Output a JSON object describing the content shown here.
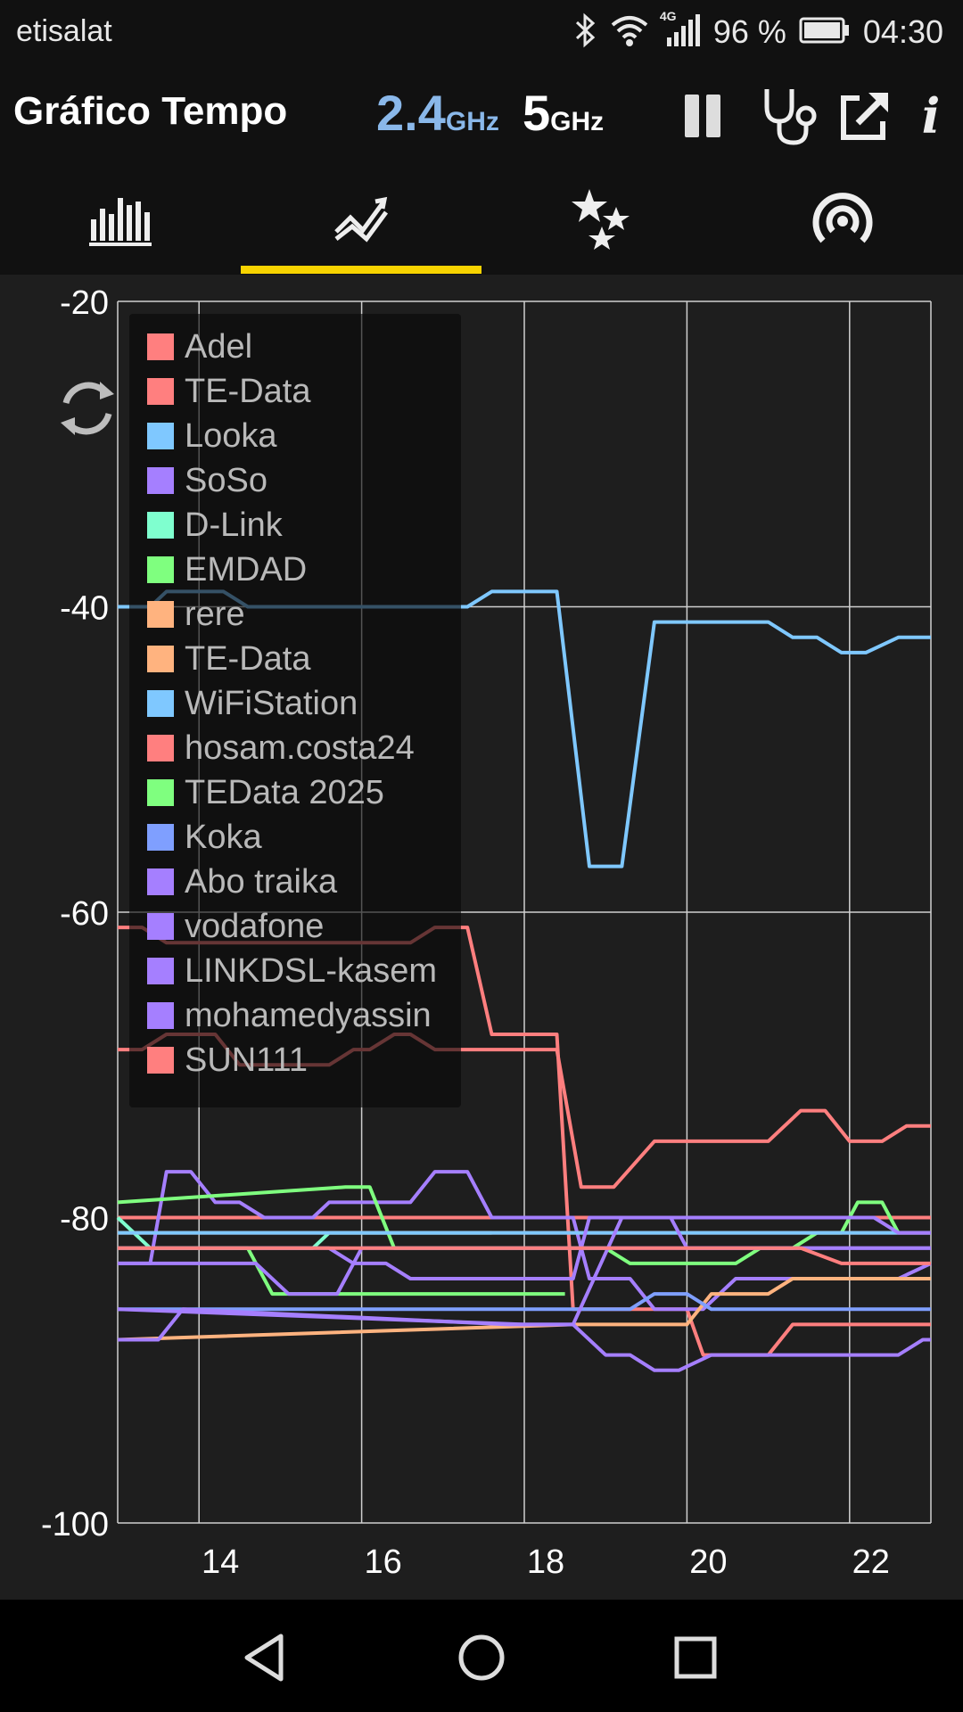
{
  "status_bar": {
    "carrier": "etisalat",
    "network": "4G",
    "battery": "96 %",
    "time": "04:30",
    "icons": [
      "bluetooth-icon",
      "wifi-icon",
      "signal-icon",
      "battery-icon"
    ]
  },
  "app_bar": {
    "title": "Gráfico Tempo",
    "band_24_value": "2.4",
    "band_24_unit": "GHz",
    "band_5_value": "5",
    "band_5_unit": "GHz",
    "band_24_color": "#8ab8ea",
    "band_5_color": "#ffffff",
    "actions": [
      "pause-icon",
      "stethoscope-icon",
      "share-icon",
      "info-icon"
    ],
    "info_label": "i"
  },
  "tabs": {
    "items": [
      "bar-chart-icon",
      "time-graph-icon",
      "stars-icon",
      "signal-strength-icon"
    ],
    "active_index": 1,
    "indicator_color": "#f7d300"
  },
  "chart_data": {
    "type": "line",
    "ylim": [
      -100,
      -20
    ],
    "xlim": [
      13,
      23
    ],
    "y_ticks": [
      "-20",
      "-40",
      "-60",
      "-80",
      "-100"
    ],
    "x_ticks": [
      "14",
      "16",
      "18",
      "20",
      "22"
    ],
    "grid": true,
    "legend_position": "top-left",
    "series": [
      {
        "name": "Adel",
        "color": "#ff7f7f",
        "points": [
          [
            13,
            -80
          ],
          [
            23,
            -80
          ]
        ]
      },
      {
        "name": "TE-Data",
        "color": "#ff7f7f",
        "points": [
          [
            13,
            -61
          ],
          [
            13.3,
            -61
          ],
          [
            13.6,
            -62
          ],
          [
            16.6,
            -62
          ],
          [
            16.9,
            -61
          ],
          [
            17.3,
            -61
          ],
          [
            17.6,
            -68
          ],
          [
            18.2,
            -68
          ],
          [
            18.4,
            -68
          ],
          [
            18.6,
            -86
          ],
          [
            19,
            -86
          ],
          [
            19.2,
            -86
          ],
          [
            20,
            -86
          ],
          [
            20.2,
            -89
          ],
          [
            21,
            -89
          ],
          [
            21.3,
            -87
          ],
          [
            23,
            -87
          ]
        ]
      },
      {
        "name": "Looka",
        "color": "#7fc8ff",
        "points": [
          [
            13,
            -40
          ],
          [
            13.4,
            -40
          ],
          [
            13.6,
            -39
          ],
          [
            14.3,
            -39
          ],
          [
            14.6,
            -40
          ],
          [
            17.3,
            -40
          ],
          [
            17.6,
            -39
          ],
          [
            18.4,
            -39
          ],
          [
            18.8,
            -57
          ],
          [
            19.2,
            -57
          ],
          [
            19.6,
            -41
          ],
          [
            21,
            -41
          ],
          [
            21.3,
            -42
          ],
          [
            21.6,
            -42
          ],
          [
            21.9,
            -43
          ],
          [
            22.2,
            -43
          ],
          [
            22.6,
            -42
          ],
          [
            23,
            -42
          ]
        ]
      },
      {
        "name": "SoSo",
        "color": "#a57fff",
        "points": [
          [
            13,
            -83
          ],
          [
            13.4,
            -83
          ],
          [
            13.6,
            -77
          ],
          [
            13.9,
            -77
          ],
          [
            14.2,
            -79
          ],
          [
            14.5,
            -79
          ],
          [
            14.8,
            -80
          ],
          [
            15.4,
            -80
          ],
          [
            15.6,
            -79
          ],
          [
            16.6,
            -79
          ],
          [
            16.9,
            -77
          ],
          [
            17.3,
            -77
          ],
          [
            17.6,
            -80
          ],
          [
            18.6,
            -80
          ],
          [
            18.8,
            -84
          ],
          [
            19.3,
            -84
          ],
          [
            19.6,
            -86
          ],
          [
            20.2,
            -86
          ],
          [
            20.6,
            -84
          ],
          [
            22.6,
            -84
          ],
          [
            23,
            -83
          ]
        ]
      },
      {
        "name": "D-Link",
        "color": "#7fffcf",
        "points": [
          [
            13,
            -80
          ],
          [
            13.4,
            -82
          ],
          [
            15.4,
            -82
          ],
          [
            15.6,
            -81
          ],
          [
            17.6,
            -81
          ]
        ]
      },
      {
        "name": "EMDAD",
        "color": "#7fff7f",
        "points": [
          [
            13,
            -79
          ],
          [
            15.8,
            -78
          ],
          [
            16.1,
            -78
          ],
          [
            16.4,
            -82
          ],
          [
            18.6,
            -82
          ],
          [
            19,
            -82
          ],
          [
            19.3,
            -83
          ],
          [
            20.6,
            -83
          ],
          [
            20.9,
            -82
          ],
          [
            21.3,
            -82
          ],
          [
            21.6,
            -81
          ],
          [
            21.9,
            -81
          ],
          [
            22.1,
            -79
          ],
          [
            22.4,
            -79
          ],
          [
            22.6,
            -81
          ]
        ]
      },
      {
        "name": "rere",
        "color": "#ffb37f",
        "points": [
          [
            13,
            -81
          ],
          [
            18.6,
            -81
          ],
          [
            20.2,
            -81
          ],
          [
            23,
            -81
          ]
        ]
      },
      {
        "name": "TE-Data",
        "color": "#ffb37f",
        "points": [
          [
            13,
            -88
          ],
          [
            18.6,
            -87
          ],
          [
            20,
            -87
          ],
          [
            20.3,
            -85
          ],
          [
            21,
            -85
          ],
          [
            21.3,
            -84
          ],
          [
            23,
            -84
          ]
        ]
      },
      {
        "name": "WiFiStation",
        "color": "#7fc8ff",
        "points": [
          [
            13,
            -81
          ],
          [
            18.6,
            -81
          ],
          [
            19.6,
            -81
          ],
          [
            20,
            -81
          ],
          [
            23,
            -81
          ]
        ]
      },
      {
        "name": "hosam.costa24",
        "color": "#ff7f7f",
        "points": [
          [
            13,
            -69
          ],
          [
            13.3,
            -69
          ],
          [
            13.6,
            -68
          ],
          [
            14.2,
            -68
          ],
          [
            14.5,
            -70
          ],
          [
            15.6,
            -70
          ],
          [
            15.9,
            -69
          ],
          [
            16.1,
            -69
          ],
          [
            16.4,
            -68
          ],
          [
            16.6,
            -68
          ],
          [
            16.9,
            -69
          ],
          [
            18.4,
            -69
          ],
          [
            18.7,
            -78
          ],
          [
            19.1,
            -78
          ],
          [
            19.6,
            -75
          ],
          [
            21,
            -75
          ],
          [
            21.4,
            -73
          ],
          [
            21.7,
            -73
          ],
          [
            22,
            -75
          ],
          [
            22.4,
            -75
          ],
          [
            22.7,
            -74
          ],
          [
            23,
            -74
          ]
        ]
      },
      {
        "name": "TEData 2025",
        "color": "#7fff7f",
        "points": [
          [
            13,
            -82
          ],
          [
            14.6,
            -82
          ],
          [
            14.9,
            -85
          ],
          [
            18.5,
            -85
          ]
        ]
      },
      {
        "name": "Koka",
        "color": "#7f9fff",
        "points": [
          [
            13,
            -86
          ],
          [
            18.6,
            -86
          ],
          [
            19.3,
            -86
          ],
          [
            19.6,
            -85
          ],
          [
            20,
            -85
          ],
          [
            20.3,
            -86
          ],
          [
            23,
            -86
          ]
        ]
      },
      {
        "name": "Abo traika",
        "color": "#a57fff",
        "points": [
          [
            13,
            -88
          ],
          [
            13.5,
            -88
          ],
          [
            13.8,
            -86
          ],
          [
            17.8,
            -87
          ],
          [
            18.6,
            -87
          ],
          [
            19,
            -89
          ],
          [
            19.3,
            -89
          ],
          [
            19.6,
            -90
          ],
          [
            19.9,
            -90
          ],
          [
            20.3,
            -89
          ],
          [
            22.6,
            -89
          ],
          [
            22.9,
            -88
          ],
          [
            23,
            -88
          ]
        ]
      },
      {
        "name": "vodafone",
        "color": "#a57fff",
        "points": [
          [
            13,
            -86
          ],
          [
            18,
            -87
          ],
          [
            18.6,
            -87
          ],
          [
            19.2,
            -80
          ],
          [
            19.8,
            -80
          ],
          [
            20,
            -82
          ],
          [
            23,
            -82
          ]
        ]
      },
      {
        "name": "LINKDSL-kasem",
        "color": "#a57fff",
        "points": [
          [
            13,
            -82
          ],
          [
            15.6,
            -82
          ],
          [
            15.9,
            -83
          ],
          [
            16.3,
            -83
          ],
          [
            16.6,
            -84
          ],
          [
            18.6,
            -84
          ],
          [
            18.8,
            -80
          ],
          [
            22.3,
            -80
          ],
          [
            22.6,
            -81
          ],
          [
            23,
            -81
          ]
        ]
      },
      {
        "name": "mohamedyassin",
        "color": "#a57fff",
        "points": [
          [
            13,
            -83
          ],
          [
            14.7,
            -83
          ],
          [
            15.1,
            -85
          ],
          [
            15.7,
            -85
          ],
          [
            16,
            -82
          ],
          [
            19,
            -82
          ],
          [
            20,
            -82
          ],
          [
            21.1,
            -82
          ],
          [
            23,
            -82
          ]
        ]
      },
      {
        "name": "SUN111",
        "color": "#ff7f7f",
        "points": [
          [
            13,
            -82
          ],
          [
            20,
            -82
          ],
          [
            20.4,
            -82
          ],
          [
            21.4,
            -82
          ],
          [
            21.9,
            -83
          ],
          [
            23,
            -83
          ]
        ]
      }
    ]
  },
  "nav_bar": {
    "items": [
      "back-icon",
      "home-icon",
      "recents-icon"
    ]
  }
}
